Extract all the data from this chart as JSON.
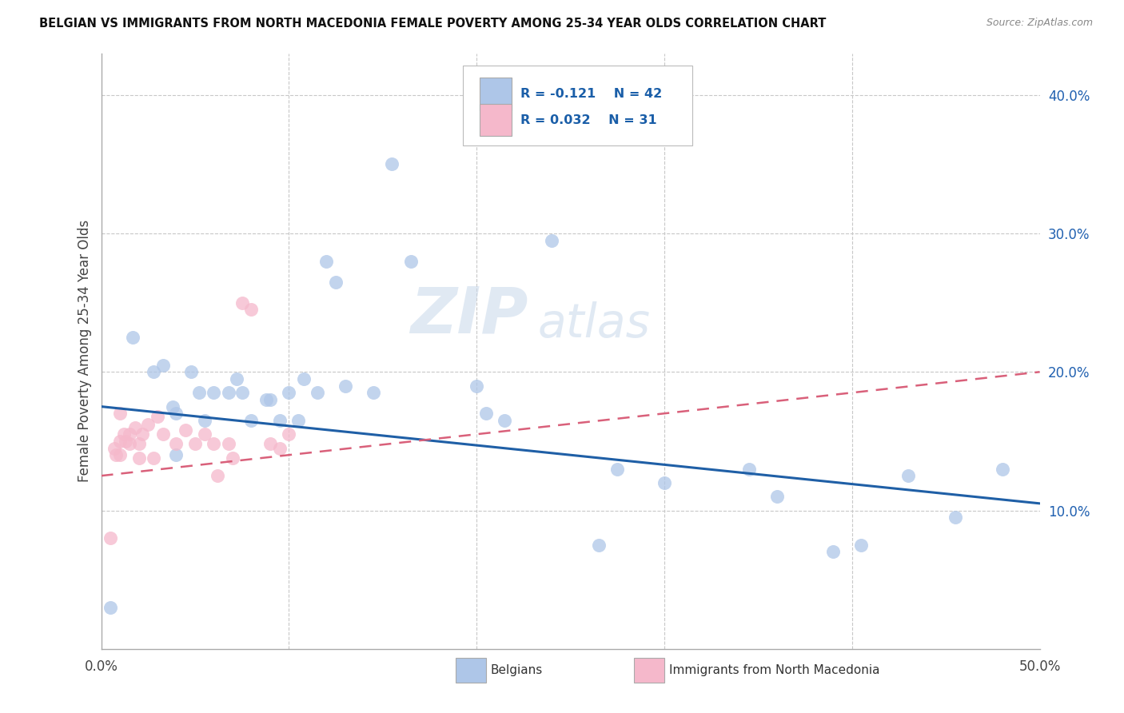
{
  "title": "BELGIAN VS IMMIGRANTS FROM NORTH MACEDONIA FEMALE POVERTY AMONG 25-34 YEAR OLDS CORRELATION CHART",
  "source": "Source: ZipAtlas.com",
  "ylabel": "Female Poverty Among 25-34 Year Olds",
  "xlabel": "",
  "xlim": [
    0.0,
    0.5
  ],
  "ylim": [
    0.0,
    0.43
  ],
  "xticks": [
    0.0,
    0.1,
    0.2,
    0.3,
    0.4,
    0.5
  ],
  "xtick_labels": [
    "0.0%",
    "",
    "",
    "",
    "",
    "50.0%"
  ],
  "yticks": [
    0.1,
    0.2,
    0.3,
    0.4
  ],
  "ytick_labels": [
    "10.0%",
    "20.0%",
    "30.0%",
    "40.0%"
  ],
  "legend_r1": "-0.121",
  "legend_n1": "42",
  "legend_r2": "0.032",
  "legend_n2": "31",
  "belgian_color": "#aec6e8",
  "immigrant_color": "#f5b8cb",
  "trendline_belgian_color": "#1f5fa6",
  "trendline_immigrant_color": "#d9607a",
  "watermark_zip": "ZIP",
  "watermark_atlas": "atlas",
  "background_color": "#ffffff",
  "grid_color": "#c8c8c8",
  "belgians_x": [
    0.005,
    0.017,
    0.028,
    0.033,
    0.038,
    0.04,
    0.04,
    0.048,
    0.052,
    0.055,
    0.06,
    0.068,
    0.072,
    0.075,
    0.08,
    0.088,
    0.09,
    0.095,
    0.1,
    0.105,
    0.108,
    0.115,
    0.12,
    0.125,
    0.13,
    0.145,
    0.155,
    0.165,
    0.2,
    0.205,
    0.215,
    0.24,
    0.265,
    0.275,
    0.3,
    0.345,
    0.36,
    0.39,
    0.405,
    0.43,
    0.455,
    0.48
  ],
  "belgians_y": [
    0.03,
    0.225,
    0.2,
    0.205,
    0.175,
    0.17,
    0.14,
    0.2,
    0.185,
    0.165,
    0.185,
    0.185,
    0.195,
    0.185,
    0.165,
    0.18,
    0.18,
    0.165,
    0.185,
    0.165,
    0.195,
    0.185,
    0.28,
    0.265,
    0.19,
    0.185,
    0.35,
    0.28,
    0.19,
    0.17,
    0.165,
    0.295,
    0.075,
    0.13,
    0.12,
    0.13,
    0.11,
    0.07,
    0.075,
    0.125,
    0.095,
    0.13
  ],
  "immigrants_x": [
    0.005,
    0.007,
    0.008,
    0.01,
    0.01,
    0.01,
    0.012,
    0.013,
    0.015,
    0.015,
    0.018,
    0.02,
    0.02,
    0.022,
    0.025,
    0.028,
    0.03,
    0.033,
    0.04,
    0.045,
    0.05,
    0.055,
    0.06,
    0.062,
    0.068,
    0.07,
    0.075,
    0.08,
    0.09,
    0.095,
    0.1
  ],
  "immigrants_y": [
    0.08,
    0.145,
    0.14,
    0.17,
    0.15,
    0.14,
    0.155,
    0.15,
    0.155,
    0.148,
    0.16,
    0.148,
    0.138,
    0.155,
    0.162,
    0.138,
    0.168,
    0.155,
    0.148,
    0.158,
    0.148,
    0.155,
    0.148,
    0.125,
    0.148,
    0.138,
    0.25,
    0.245,
    0.148,
    0.145,
    0.155
  ],
  "trendline_b_x0": 0.0,
  "trendline_b_y0": 0.175,
  "trendline_b_x1": 0.5,
  "trendline_b_y1": 0.105,
  "trendline_i_x0": 0.0,
  "trendline_i_y0": 0.125,
  "trendline_i_x1": 0.5,
  "trendline_i_y1": 0.2
}
